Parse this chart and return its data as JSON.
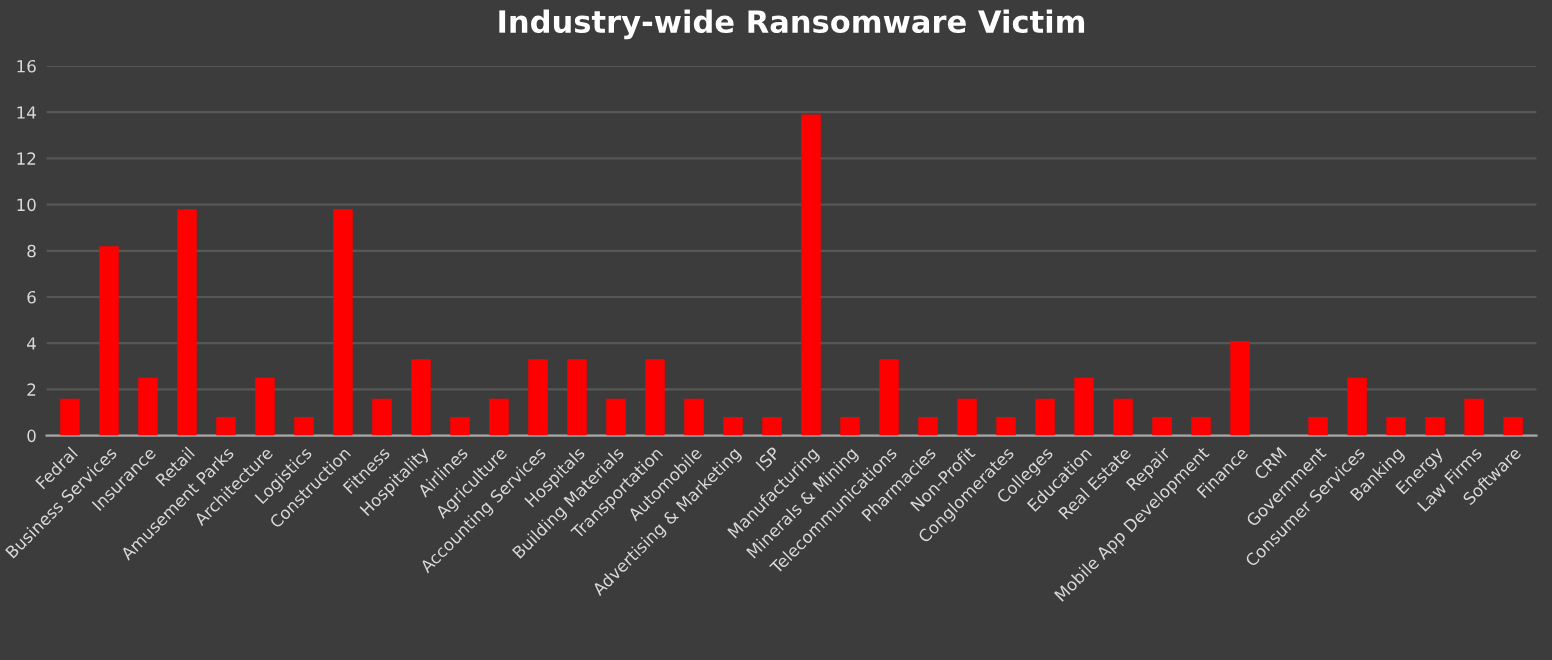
{
  "chart_data": {
    "type": "bar",
    "title": "Industry-wide Ransomware Victim",
    "categories": [
      "Fedral",
      "Business Services",
      "Insurance",
      "Retail",
      "Amusement Parks",
      "Architecture",
      "Logistics",
      "Construction",
      "Fitness",
      "Hospitality",
      "Airlines",
      "Agriculture",
      "Accounting Services",
      "Hospitals",
      "Building Materials",
      "Transportation",
      "Automobile",
      "Advertising & Marketing",
      "ISP",
      "Manufacturing",
      "Minerals & Mining",
      "Telecommunications",
      "Pharmacies",
      "Non-Profit",
      "Conglomerates",
      "Colleges",
      "Education",
      "Real Estate",
      "Repair",
      "Mobile App Development",
      "Finance",
      "CRM",
      "Government",
      "Consumer Services",
      "Banking",
      "Energy",
      "Law Firms",
      "Software"
    ],
    "values": [
      1.6,
      8.2,
      2.5,
      9.8,
      0.8,
      2.5,
      0.8,
      9.8,
      1.6,
      3.3,
      0.8,
      1.6,
      3.3,
      3.3,
      1.6,
      3.3,
      1.6,
      0.8,
      0.8,
      13.9,
      0.8,
      3.3,
      0.8,
      1.6,
      0.8,
      1.6,
      2.5,
      1.6,
      0.8,
      0.8,
      4.1,
      0,
      0.8,
      2.5,
      0.8,
      0.8,
      1.6,
      0.8
    ],
    "color": "#ff0000",
    "ylim": [
      0,
      16
    ],
    "yticks": [
      0,
      2,
      4,
      6,
      8,
      10,
      12,
      14,
      16
    ],
    "grid": "y"
  }
}
